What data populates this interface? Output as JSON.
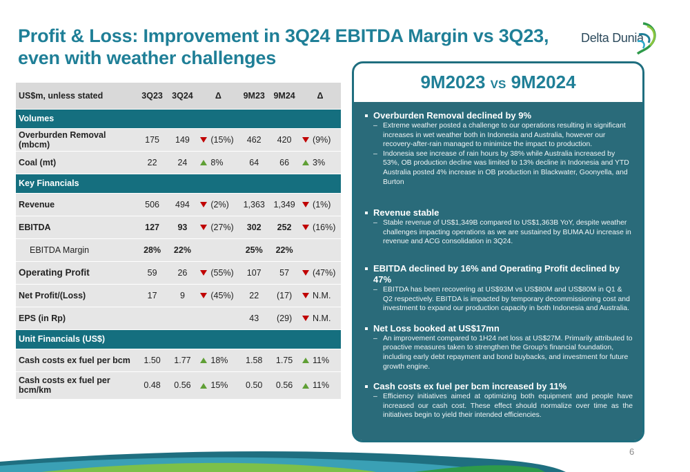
{
  "title": "Profit & Loss: Improvement in 3Q24 EBITDA Margin vs 3Q23, even with weather challenges",
  "logo_text": "Delta Dunia",
  "colors": {
    "title": "#1f7f97",
    "section": "#156f7f",
    "panel": "#2a6b7a",
    "down": "#c00000",
    "up": "#5f9f35"
  },
  "table": {
    "header": [
      "US$m, unless stated",
      "3Q23",
      "3Q24",
      "Δ",
      "9M23",
      "9M24",
      "Δ"
    ],
    "sections": {
      "volumes": "Volumes",
      "key_financials": "Key Financials",
      "unit_financials": "Unit Financials (US$)"
    },
    "rows": {
      "ob": {
        "label": "Overburden Removal (mbcm)",
        "q23": "175",
        "q24": "149",
        "dq": "(15%)",
        "dq_dir": "down",
        "m23": "462",
        "m24": "420",
        "dm": "(9%)",
        "dm_dir": "down"
      },
      "coal": {
        "label": "Coal (mt)",
        "q23": "22",
        "q24": "24",
        "dq": "8%",
        "dq_dir": "up",
        "m23": "64",
        "m24": "66",
        "dm": "3%",
        "dm_dir": "up"
      },
      "revenue": {
        "label": "Revenue",
        "q23": "506",
        "q24": "494",
        "dq": "(2%)",
        "dq_dir": "down",
        "m23": "1,363",
        "m24": "1,349",
        "dm": "(1%)",
        "dm_dir": "down"
      },
      "ebitda": {
        "label": "EBITDA",
        "q23": "127",
        "q24": "93",
        "dq": "(27%)",
        "dq_dir": "down",
        "m23": "302",
        "m24": "252",
        "dm": "(16%)",
        "dm_dir": "down"
      },
      "margin": {
        "label": "EBITDA Margin",
        "q23": "28%",
        "q24": "22%",
        "m23": "25%",
        "m24": "22%"
      },
      "op": {
        "label": "Operating Profit",
        "q23": "59",
        "q24": "26",
        "dq": "(55%)",
        "dq_dir": "down",
        "m23": "107",
        "m24": "57",
        "dm": "(47%)",
        "dm_dir": "down"
      },
      "np": {
        "label": "Net Profit/(Loss)",
        "q23": "17",
        "q24": "9",
        "dq": "(45%)",
        "dq_dir": "down",
        "m23": "22",
        "m24": "(17)",
        "dm": "N.M.",
        "dm_dir": "down"
      },
      "eps": {
        "label": "EPS (in Rp)",
        "m23": "43",
        "m24": "(29)",
        "dm": "N.M.",
        "dm_dir": "down"
      },
      "cc": {
        "label": "Cash costs ex fuel per bcm",
        "q23": "1.50",
        "q24": "1.77",
        "dq": "18%",
        "dq_dir": "up",
        "m23": "1.58",
        "m24": "1.75",
        "dm": "11%",
        "dm_dir": "up"
      },
      "cck": {
        "label": "Cash costs ex fuel per bcm/km",
        "q23": "0.48",
        "q24": "0.56",
        "dq": "15%",
        "dq_dir": "up",
        "m23": "0.50",
        "m24": "0.56",
        "dm": "11%",
        "dm_dir": "up"
      }
    }
  },
  "panel": {
    "header_left": "9M2023",
    "header_vs": "VS",
    "header_right": "9M2024",
    "bullets": [
      {
        "head": "Overburden Removal declined by 9%",
        "subs": [
          "Extreme weather posted a challenge to our operations resulting in significant increases in wet weather both in Indonesia and Australia, however our recovery-after-rain managed to minimize the impact to production.",
          "Indonesia see increase of rain hours by 38% while Australia increased by 53%, OB production decline was limited to 13% decline in Indonesia and YTD Australia posted 4% increase in OB production in Blackwater, Goonyella, and Burton"
        ]
      },
      {
        "head": "Revenue stable",
        "subs": [
          "Stable revenue of US$1,349B compared to US$1,363B YoY, despite weather challenges impacting operations as we are sustained by BUMA AU increase in revenue and ACG consolidation in 3Q24."
        ]
      },
      {
        "head": "EBITDA declined by 16% and Operating Profit declined by 47%",
        "subs": [
          "EBITDA has been recovering at US$93M vs US$80M and US$80M in Q1 & Q2 respectively. EBITDA is impacted by temporary decommissioning cost  and investment to expand our production capacity in both Indonesia and Australia."
        ]
      },
      {
        "head": "Net Loss booked at US$17mn",
        "subs": [
          "An improvement compared to 1H24 net loss at US$27M. Primarily attributed to proactive measures taken to strengthen the Group's financial foundation, including early debt repayment and bond buybacks, and investment for future growth engine."
        ]
      },
      {
        "head": "Cash costs ex fuel per bcm increased by 11%",
        "subs": [
          "Efficiency initiatives aimed at optimizing both equipment and people have increased our cash cost. These effect should normalize over time as the initiatives begin to yield their intended efficiencies."
        ]
      }
    ]
  },
  "page_number": "6"
}
